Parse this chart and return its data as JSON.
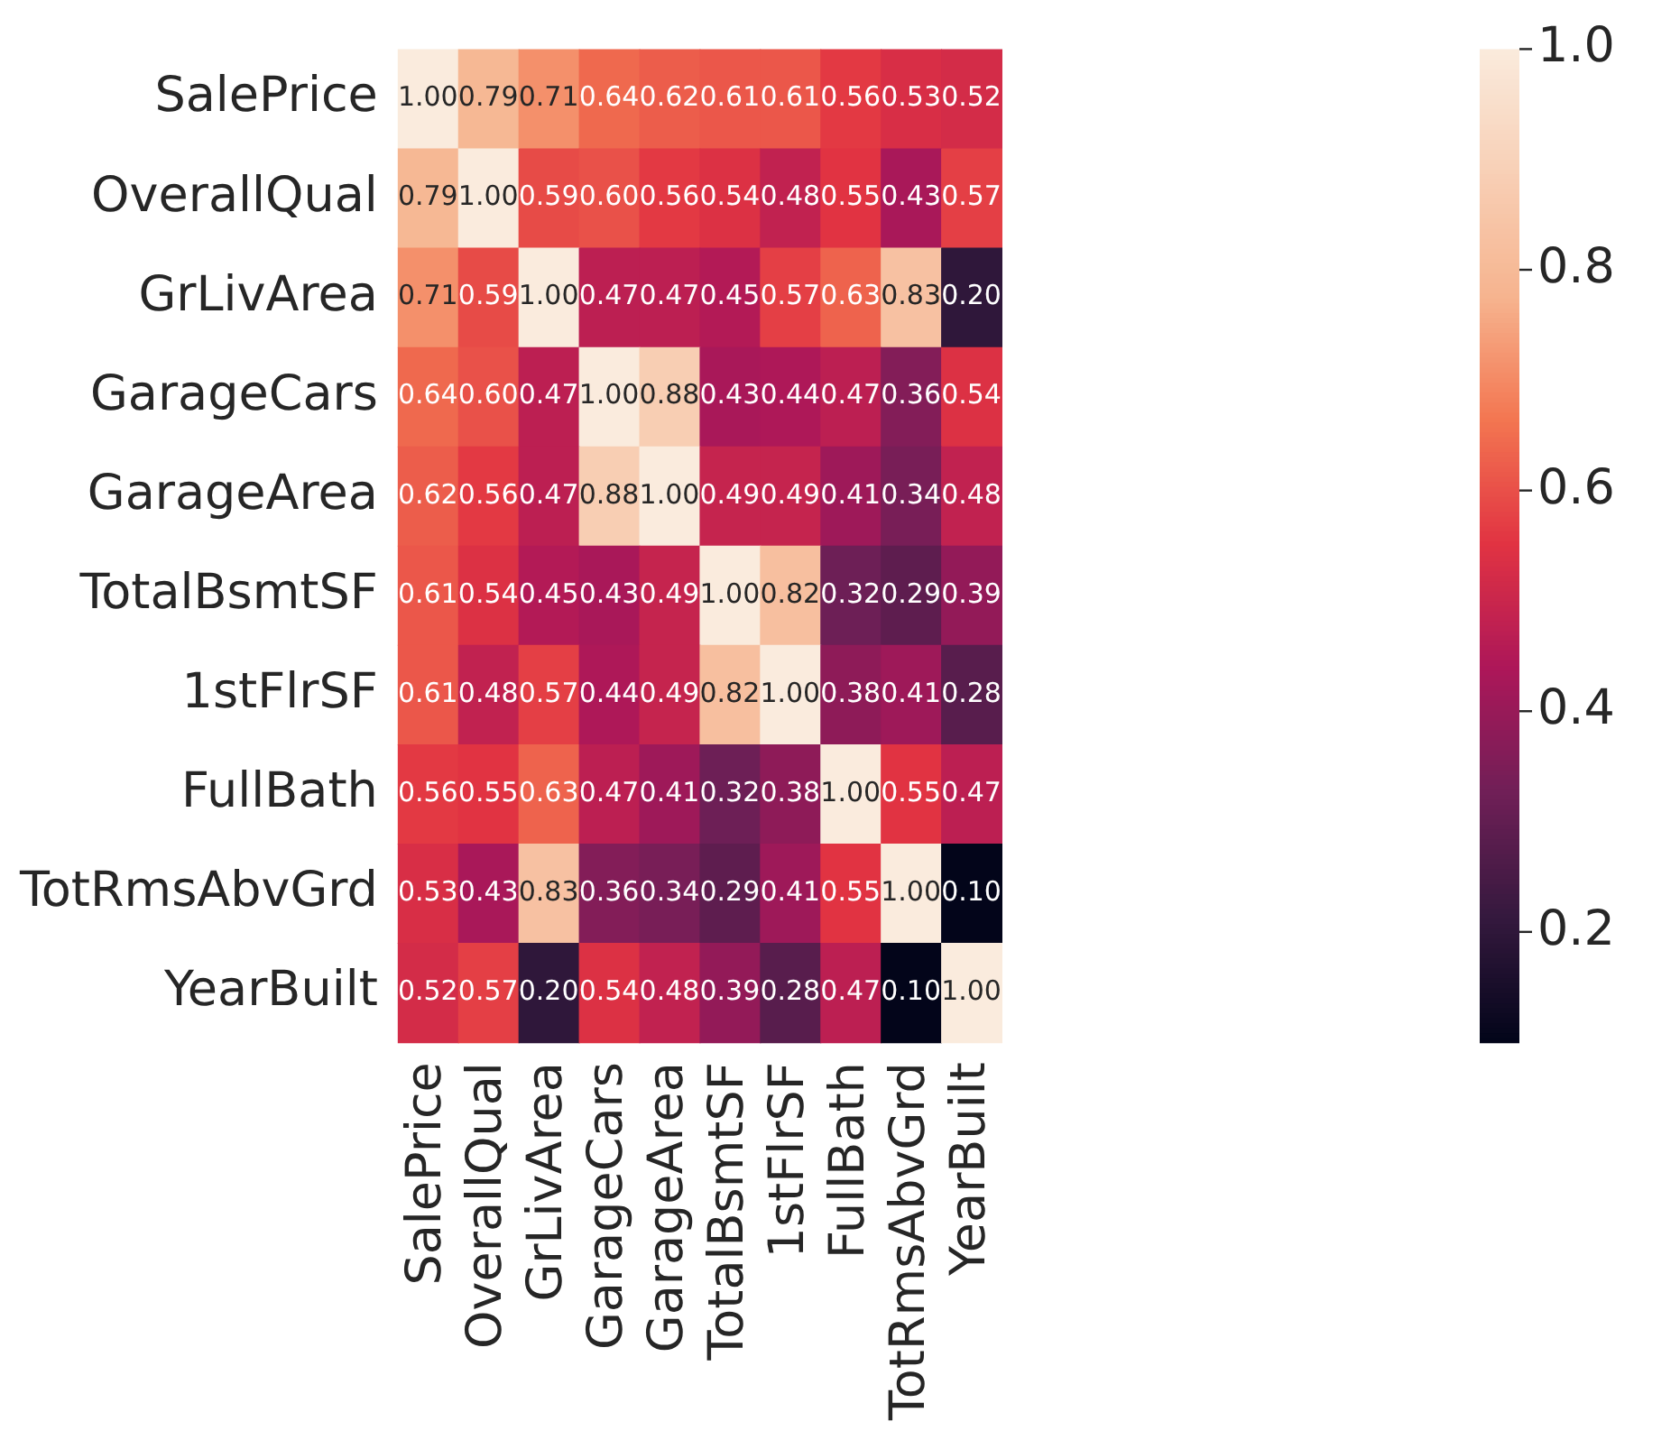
{
  "chart_data": {
    "type": "heatmap",
    "categories": [
      "SalePrice",
      "OverallQual",
      "GrLivArea",
      "GarageCars",
      "GarageArea",
      "TotalBsmtSF",
      "1stFlrSF",
      "FullBath",
      "TotRmsAbvGrd",
      "YearBuilt"
    ],
    "y_categories": [
      "SalePrice",
      "OverallQual",
      "GrLivArea",
      "GarageCars",
      "GarageArea",
      "TotalBsmtSF",
      "1stFlrSF",
      "FullBath",
      "TotRmsAbvGrd",
      "YearBuilt"
    ],
    "cells": [
      [
        1.0,
        0.79,
        0.71,
        0.64,
        0.62,
        0.61,
        0.61,
        0.56,
        0.53,
        0.52
      ],
      [
        0.79,
        1.0,
        0.59,
        0.6,
        0.56,
        0.54,
        0.48,
        0.55,
        0.43,
        0.57
      ],
      [
        0.71,
        0.59,
        1.0,
        0.47,
        0.47,
        0.45,
        0.57,
        0.63,
        0.83,
        0.2
      ],
      [
        0.64,
        0.6,
        0.47,
        1.0,
        0.88,
        0.43,
        0.44,
        0.47,
        0.36,
        0.54
      ],
      [
        0.62,
        0.56,
        0.47,
        0.88,
        1.0,
        0.49,
        0.49,
        0.41,
        0.34,
        0.48
      ],
      [
        0.61,
        0.54,
        0.45,
        0.43,
        0.49,
        1.0,
        0.82,
        0.32,
        0.29,
        0.39
      ],
      [
        0.61,
        0.48,
        0.57,
        0.44,
        0.49,
        0.82,
        1.0,
        0.38,
        0.41,
        0.28
      ],
      [
        0.56,
        0.55,
        0.63,
        0.47,
        0.41,
        0.32,
        0.38,
        1.0,
        0.55,
        0.47
      ],
      [
        0.53,
        0.43,
        0.83,
        0.36,
        0.34,
        0.29,
        0.41,
        0.55,
        1.0,
        0.1
      ],
      [
        0.52,
        0.57,
        0.2,
        0.54,
        0.48,
        0.39,
        0.28,
        0.47,
        0.1,
        1.0
      ]
    ],
    "cell_labels": [
      [
        "1.00",
        "0.79",
        "0.71",
        "0.64",
        "0.62",
        "0.61",
        "0.61",
        "0.56",
        "0.53",
        "0.52"
      ],
      [
        "0.79",
        "1.00",
        "0.59",
        "0.60",
        "0.56",
        "0.54",
        "0.48",
        "0.55",
        "0.43",
        "0.57"
      ],
      [
        "0.71",
        "0.59",
        "1.00",
        "0.47",
        "0.47",
        "0.45",
        "0.57",
        "0.63",
        "0.83",
        "0.20"
      ],
      [
        "0.64",
        "0.60",
        "0.47",
        "1.00",
        "0.88",
        "0.43",
        "0.44",
        "0.47",
        "0.36",
        "0.54"
      ],
      [
        "0.62",
        "0.56",
        "0.47",
        "0.88",
        "1.00",
        "0.49",
        "0.49",
        "0.41",
        "0.34",
        "0.48"
      ],
      [
        "0.61",
        "0.54",
        "0.45",
        "0.43",
        "0.49",
        "1.00",
        "0.82",
        "0.32",
        "0.29",
        "0.39"
      ],
      [
        "0.61",
        "0.48",
        "0.57",
        "0.44",
        "0.49",
        "0.82",
        "1.00",
        "0.38",
        "0.41",
        "0.28"
      ],
      [
        "0.56",
        "0.55",
        "0.63",
        "0.47",
        "0.41",
        "0.32",
        "0.38",
        "1.00",
        "0.55",
        "0.47"
      ],
      [
        "0.53",
        "0.43",
        "0.83",
        "0.36",
        "0.34",
        "0.29",
        "0.41",
        "0.55",
        "1.00",
        "0.10"
      ],
      [
        "0.52",
        "0.57",
        "0.20",
        "0.54",
        "0.48",
        "0.39",
        "0.28",
        "0.47",
        "0.10",
        "1.00"
      ]
    ],
    "clim": [
      0.1,
      1.0
    ],
    "cticks": [
      0.2,
      0.4,
      0.6,
      0.8,
      {
        "value": 1.0,
        "label": "1.0"
      }
    ]
  }
}
